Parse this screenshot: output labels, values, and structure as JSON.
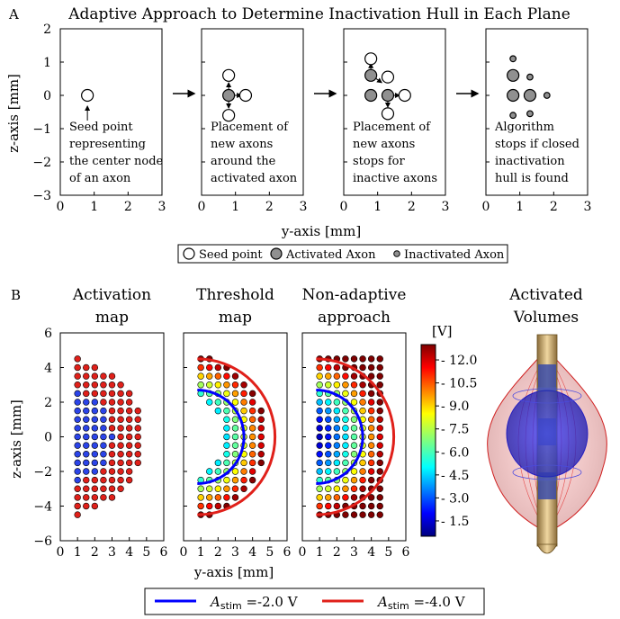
{
  "panel_a": {
    "label": "A",
    "title": "Adaptive Approach to Determine Inactivation Hull in Each Plane",
    "ylabel": "z-axis [mm]",
    "xlabel": "y-axis [mm]",
    "yticks": [
      "2",
      "1",
      "0",
      "−1",
      "−2",
      "−3"
    ],
    "xticks": [
      "0",
      "1",
      "2",
      "3"
    ],
    "subplots": [
      {
        "caption": [
          "Seed point",
          "representing",
          "the center node",
          "of an axon"
        ]
      },
      {
        "caption": [
          "Placement of",
          "new axons",
          "around the",
          "activated axon"
        ]
      },
      {
        "caption": [
          "Placement of",
          "new axons",
          "stops for",
          "inactive axons"
        ]
      },
      {
        "caption": [
          "Algorithm",
          "stops if closed",
          "inactivation",
          "hull is found"
        ]
      }
    ],
    "legend": [
      "Seed point",
      "Activated Axon",
      "Inactivated Axon"
    ]
  },
  "panel_b": {
    "label": "B",
    "titles": [
      [
        "Activation",
        "map"
      ],
      [
        "Threshold",
        "map"
      ],
      [
        "Non-adaptive",
        "approach"
      ],
      [
        "Activated",
        "Volumes"
      ]
    ],
    "ylabel": "z-axis [mm]",
    "xlabel": "y-axis [mm]",
    "yticks": [
      "6",
      "4",
      "2",
      "0",
      "−2",
      "−4",
      "−6"
    ],
    "xticks": [
      "0",
      "1",
      "2",
      "3",
      "4",
      "5",
      "6"
    ],
    "colorbar_label": "[V]",
    "colorbar_ticks": [
      "- 12.0",
      "- 10.5",
      "- 9.0",
      "- 7.5",
      "- 6.0",
      "- 4.5",
      "- 3.0",
      "- 1.5"
    ],
    "legend": [
      {
        "sym": "A",
        "sub": "stim",
        "text": " =-2.0 V",
        "color": "#0000ff"
      },
      {
        "sym": "A",
        "sub": "stim",
        "text": " =-4.0 V",
        "color": "#e0201a"
      }
    ]
  },
  "chart_data": [
    {
      "type": "scatter",
      "title": "Adaptive Approach to Determine Inactivation Hull in Each Plane",
      "xlabel": "y-axis [mm]",
      "ylabel": "z-axis [mm]",
      "xlim": [
        0,
        3
      ],
      "ylim": [
        -3,
        2
      ],
      "subplots": [
        {
          "points": [
            {
              "y": 0.8,
              "z": 0,
              "state": "seed"
            }
          ]
        },
        {
          "points": [
            {
              "y": 0.8,
              "z": 0,
              "state": "activated"
            },
            {
              "y": 0.8,
              "z": 0.6,
              "state": "seed"
            },
            {
              "y": 1.3,
              "z": 0,
              "state": "seed"
            },
            {
              "y": 0.8,
              "z": -0.6,
              "state": "seed"
            }
          ]
        },
        {
          "points": [
            {
              "y": 0.8,
              "z": 0,
              "state": "activated"
            },
            {
              "y": 0.8,
              "z": 0.6,
              "state": "activated"
            },
            {
              "y": 1.3,
              "z": 0,
              "state": "activated"
            },
            {
              "y": 0.8,
              "z": 1.1,
              "state": "seed"
            },
            {
              "y": 1.3,
              "z": 0.55,
              "state": "seed"
            },
            {
              "y": 1.8,
              "z": 0,
              "state": "seed"
            },
            {
              "y": 1.3,
              "z": -0.55,
              "state": "seed"
            }
          ]
        },
        {
          "points": [
            {
              "y": 0.8,
              "z": 0,
              "state": "activated"
            },
            {
              "y": 0.8,
              "z": 0.6,
              "state": "activated"
            },
            {
              "y": 1.3,
              "z": 0,
              "state": "activated"
            },
            {
              "y": 0.8,
              "z": 1.1,
              "state": "inactivated"
            },
            {
              "y": 1.3,
              "z": 0.55,
              "state": "inactivated"
            },
            {
              "y": 1.8,
              "z": 0,
              "state": "inactivated"
            },
            {
              "y": 1.3,
              "z": -0.55,
              "state": "inactivated"
            },
            {
              "y": 0.8,
              "z": -0.6,
              "state": "inactivated"
            }
          ]
        }
      ]
    },
    {
      "type": "scatter",
      "subplots": [
        "Activation map",
        "Threshold map",
        "Non-adaptive approach"
      ],
      "xlabel": "y-axis [mm]",
      "ylabel": "z-axis [mm]",
      "xlim": [
        0,
        6
      ],
      "ylim": [
        -6,
        6
      ],
      "grid_spacing_mm": 0.5,
      "colorbar": {
        "label": "[V]",
        "range": [
          0.5,
          13.0
        ]
      },
      "series": [
        {
          "name": "A_stim =-2.0 V",
          "color": "#0000ff"
        },
        {
          "name": "A_stim =-4.0 V",
          "color": "#e0201a"
        }
      ]
    }
  ]
}
